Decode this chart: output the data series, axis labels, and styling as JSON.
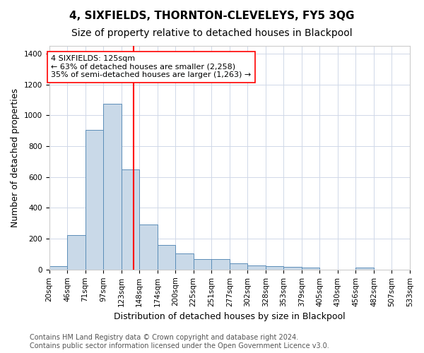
{
  "title": "4, SIXFIELDS, THORNTON-CLEVELEYS, FY5 3QG",
  "subtitle": "Size of property relative to detached houses in Blackpool",
  "xlabel": "Distribution of detached houses by size in Blackpool",
  "ylabel": "Number of detached properties",
  "bar_values": [
    20,
    225,
    905,
    1075,
    650,
    290,
    160,
    105,
    70,
    70,
    40,
    25,
    20,
    18,
    15,
    0,
    0,
    15,
    0,
    0
  ],
  "bin_edges": [
    7.5,
    32.5,
    57.5,
    82.5,
    107.5,
    132.5,
    157.5,
    182.5,
    207.5,
    232.5,
    257.5,
    282.5,
    307.5,
    332.5,
    357.5,
    382.5,
    407.5,
    432.5,
    457.5,
    482.5,
    507.5
  ],
  "tick_labels": [
    "20sqm",
    "46sqm",
    "71sqm",
    "97sqm",
    "123sqm",
    "148sqm",
    "174sqm",
    "200sqm",
    "225sqm",
    "251sqm",
    "277sqm",
    "302sqm",
    "328sqm",
    "353sqm",
    "379sqm",
    "405sqm",
    "430sqm",
    "456sqm",
    "482sqm",
    "507sqm",
    "533sqm"
  ],
  "bar_color": "#c9d9e8",
  "bar_edgecolor": "#5b8db8",
  "vline_x": 125,
  "vline_color": "red",
  "annotation_text": "4 SIXFIELDS: 125sqm\n← 63% of detached houses are smaller (2,258)\n35% of semi-detached houses are larger (1,263) →",
  "annotation_box_color": "white",
  "annotation_box_edgecolor": "red",
  "ylim": [
    0,
    1450
  ],
  "yticks": [
    0,
    200,
    400,
    600,
    800,
    1000,
    1200,
    1400
  ],
  "grid_color": "#d0d8e8",
  "footer_text": "Contains HM Land Registry data © Crown copyright and database right 2024.\nContains public sector information licensed under the Open Government Licence v3.0.",
  "title_fontsize": 11,
  "subtitle_fontsize": 10,
  "xlabel_fontsize": 9,
  "ylabel_fontsize": 9,
  "tick_fontsize": 7.5,
  "annotation_fontsize": 8,
  "footer_fontsize": 7
}
